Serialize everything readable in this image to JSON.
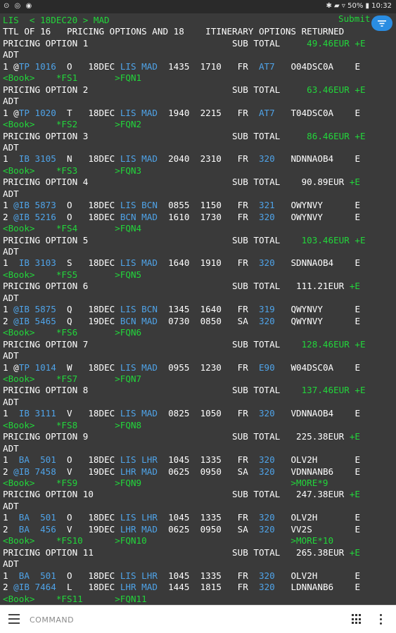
{
  "statusbar": {
    "left_icons": "⊙ ◎ ◉",
    "right": "✱ ▰ ▿ 50% ▮ 10:32"
  },
  "terminal": {
    "submit_label": "Submit",
    "lines": [
      [
        [
          "LIS  < 18DEC20 > MAD",
          "green"
        ]
      ],
      [
        [
          "TTL OF 16   PRICING OPTIONS AND 18    ITINERARY OPTIONS RETURNED",
          "white"
        ]
      ],
      [
        [
          "PRICING OPTION 1                           SUB TOTAL   ",
          "white"
        ],
        [
          "  49.46EUR +E",
          "green"
        ]
      ],
      [
        [
          "ADT",
          "white"
        ]
      ],
      [
        [
          "1 @",
          "white"
        ],
        [
          "TP 1016",
          "blue"
        ],
        [
          "  O   18DEC ",
          "white"
        ],
        [
          "LIS MAD",
          "blue"
        ],
        [
          "  1435  1710   FR  ",
          "white"
        ],
        [
          "AT7",
          "blue"
        ],
        [
          "   O04DSC0A    E",
          "white"
        ]
      ],
      [
        [
          "<Book>    *FS1       >FQN1",
          "green"
        ]
      ],
      [
        [
          "PRICING OPTION 2                           SUB TOTAL   ",
          "white"
        ],
        [
          "  63.46EUR +E",
          "green"
        ]
      ],
      [
        [
          "ADT",
          "white"
        ]
      ],
      [
        [
          "1 @",
          "white"
        ],
        [
          "TP 1020",
          "blue"
        ],
        [
          "  T   18DEC ",
          "white"
        ],
        [
          "LIS MAD",
          "blue"
        ],
        [
          "  1940  2215   FR  ",
          "white"
        ],
        [
          "AT7",
          "blue"
        ],
        [
          "   T04DSC0A    E",
          "white"
        ]
      ],
      [
        [
          "<Book>    *FS2       >FQN2",
          "green"
        ]
      ],
      [
        [
          "PRICING OPTION 3                           SUB TOTAL   ",
          "white"
        ],
        [
          "  86.46EUR +E",
          "green"
        ]
      ],
      [
        [
          "ADT",
          "white"
        ]
      ],
      [
        [
          "1  ",
          "white"
        ],
        [
          "IB 3105",
          "blue"
        ],
        [
          "  N   18DEC ",
          "white"
        ],
        [
          "LIS MAD",
          "blue"
        ],
        [
          "  2040  2310   FR  ",
          "white"
        ],
        [
          "320",
          "blue"
        ],
        [
          "   NDNNAOB4    E",
          "white"
        ]
      ],
      [
        [
          "<Book>    *FS3       >FQN3",
          "green"
        ]
      ],
      [
        [
          "PRICING OPTION 4                           SUB TOTAL    90.89EUR ",
          "white"
        ],
        [
          "+E",
          "green"
        ]
      ],
      [
        [
          "ADT",
          "white"
        ]
      ],
      [
        [
          "1 ",
          "white"
        ],
        [
          "@IB 5873",
          "blue"
        ],
        [
          "  O   18DEC ",
          "white"
        ],
        [
          "LIS BCN",
          "blue"
        ],
        [
          "  0855  1150   FR  ",
          "white"
        ],
        [
          "321",
          "blue"
        ],
        [
          "   OWYNVY      E",
          "white"
        ]
      ],
      [
        [
          "2 ",
          "white"
        ],
        [
          "@IB 5216",
          "blue"
        ],
        [
          "  O   18DEC ",
          "white"
        ],
        [
          "BCN MAD",
          "blue"
        ],
        [
          "  1610  1730   FR  ",
          "white"
        ],
        [
          "320",
          "blue"
        ],
        [
          "   OWYNVY      E",
          "white"
        ]
      ],
      [
        [
          "<Book>    *FS4       >FQN4",
          "green"
        ]
      ],
      [
        [
          "PRICING OPTION 5                           SUB TOTAL   ",
          "white"
        ],
        [
          " 103.46EUR +E",
          "green"
        ]
      ],
      [
        [
          "ADT",
          "white"
        ]
      ],
      [
        [
          "1  ",
          "white"
        ],
        [
          "IB 3103",
          "blue"
        ],
        [
          "  S   18DEC ",
          "white"
        ],
        [
          "LIS MAD",
          "blue"
        ],
        [
          "  1640  1910   FR  ",
          "white"
        ],
        [
          "320",
          "blue"
        ],
        [
          "   SDNNAOB4    E",
          "white"
        ]
      ],
      [
        [
          "<Book>    *FS5       >FQN5",
          "green"
        ]
      ],
      [
        [
          "PRICING OPTION 6                           SUB TOTAL   111.21EUR ",
          "white"
        ],
        [
          "+E",
          "green"
        ]
      ],
      [
        [
          "ADT",
          "white"
        ]
      ],
      [
        [
          "1 ",
          "white"
        ],
        [
          "@IB 5875",
          "blue"
        ],
        [
          "  Q   18DEC ",
          "white"
        ],
        [
          "LIS BCN",
          "blue"
        ],
        [
          "  1345  1640   FR  ",
          "white"
        ],
        [
          "319",
          "blue"
        ],
        [
          "   QWYNVY      E",
          "white"
        ]
      ],
      [
        [
          "2 ",
          "white"
        ],
        [
          "@IB 5465",
          "blue"
        ],
        [
          "  Q   19DEC ",
          "white"
        ],
        [
          "BCN MAD",
          "blue"
        ],
        [
          "  0730  0850   SA  ",
          "white"
        ],
        [
          "320",
          "blue"
        ],
        [
          "   QWYNVY      E",
          "white"
        ]
      ],
      [
        [
          "<Book>    *FS6       >FQN6",
          "green"
        ]
      ],
      [
        [
          "PRICING OPTION 7                           SUB TOTAL   ",
          "white"
        ],
        [
          " 128.46EUR +E",
          "green"
        ]
      ],
      [
        [
          "ADT",
          "white"
        ]
      ],
      [
        [
          "1 @",
          "white"
        ],
        [
          "TP 1014",
          "blue"
        ],
        [
          "  W   18DEC ",
          "white"
        ],
        [
          "LIS MAD",
          "blue"
        ],
        [
          "  0955  1230   FR  ",
          "white"
        ],
        [
          "E90",
          "blue"
        ],
        [
          "   W04DSC0A    E",
          "white"
        ]
      ],
      [
        [
          "<Book>    *FS7       >FQN7",
          "green"
        ]
      ],
      [
        [
          "PRICING OPTION 8                           SUB TOTAL   ",
          "white"
        ],
        [
          " 137.46EUR +E",
          "green"
        ]
      ],
      [
        [
          "ADT",
          "white"
        ]
      ],
      [
        [
          "1  ",
          "white"
        ],
        [
          "IB 3111",
          "blue"
        ],
        [
          "  V   18DEC ",
          "white"
        ],
        [
          "LIS MAD",
          "blue"
        ],
        [
          "  0825  1050   FR  ",
          "white"
        ],
        [
          "320",
          "blue"
        ],
        [
          "   VDNNAOB4    E",
          "white"
        ]
      ],
      [
        [
          "<Book>    *FS8       >FQN8",
          "green"
        ]
      ],
      [
        [
          "PRICING OPTION 9                           SUB TOTAL   225.38EUR ",
          "white"
        ],
        [
          "+E",
          "green"
        ]
      ],
      [
        [
          "ADT",
          "white"
        ]
      ],
      [
        [
          "1  ",
          "white"
        ],
        [
          "BA  501",
          "blue"
        ],
        [
          "  O   18DEC ",
          "white"
        ],
        [
          "LIS LHR",
          "blue"
        ],
        [
          "  1045  1335   FR  ",
          "white"
        ],
        [
          "320",
          "blue"
        ],
        [
          "   OLV2H       E",
          "white"
        ]
      ],
      [
        [
          "2 ",
          "white"
        ],
        [
          "@IB 7458",
          "blue"
        ],
        [
          "  V   19DEC ",
          "white"
        ],
        [
          "LHR MAD",
          "blue"
        ],
        [
          "  0625  0950   SA  ",
          "white"
        ],
        [
          "320",
          "blue"
        ],
        [
          "   VDNNANB6    E",
          "white"
        ]
      ],
      [
        [
          "<Book>    *FS9       >FQN9                            >MORE*9",
          "green"
        ]
      ],
      [
        [
          "PRICING OPTION 10                          SUB TOTAL   247.38EUR ",
          "white"
        ],
        [
          "+E",
          "green"
        ]
      ],
      [
        [
          "ADT",
          "white"
        ]
      ],
      [
        [
          "1  ",
          "white"
        ],
        [
          "BA  501",
          "blue"
        ],
        [
          "  O   18DEC ",
          "white"
        ],
        [
          "LIS LHR",
          "blue"
        ],
        [
          "  1045  1335   FR  ",
          "white"
        ],
        [
          "320",
          "blue"
        ],
        [
          "   OLV2H       E",
          "white"
        ]
      ],
      [
        [
          "2  ",
          "white"
        ],
        [
          "BA  456",
          "blue"
        ],
        [
          "  V   19DEC ",
          "white"
        ],
        [
          "LHR MAD",
          "blue"
        ],
        [
          "  0625  0950   SA  ",
          "white"
        ],
        [
          "320",
          "blue"
        ],
        [
          "   VV2S        E",
          "white"
        ]
      ],
      [
        [
          "<Book>    *FS10      >FQN10                           >MORE*10",
          "green"
        ]
      ],
      [
        [
          "PRICING OPTION 11                          SUB TOTAL   265.38EUR ",
          "white"
        ],
        [
          "+E",
          "green"
        ]
      ],
      [
        [
          "ADT",
          "white"
        ]
      ],
      [
        [
          "1  ",
          "white"
        ],
        [
          "BA  501",
          "blue"
        ],
        [
          "  O   18DEC ",
          "white"
        ],
        [
          "LIS LHR",
          "blue"
        ],
        [
          "  1045  1335   FR  ",
          "white"
        ],
        [
          "320",
          "blue"
        ],
        [
          "   OLV2H       E",
          "white"
        ]
      ],
      [
        [
          "2 ",
          "white"
        ],
        [
          "@IB 7464",
          "blue"
        ],
        [
          "  L   18DEC ",
          "white"
        ],
        [
          "LHR MAD",
          "blue"
        ],
        [
          "  1445  1815   FR  ",
          "white"
        ],
        [
          "320",
          "blue"
        ],
        [
          "   LDNNANB6    E",
          "white"
        ]
      ],
      [
        [
          "<Book>    *FS11      >FQN11",
          "green"
        ]
      ]
    ]
  },
  "command_bar": {
    "placeholder": "COMMAND",
    "menu_icon": "menu-icon",
    "keypad_icon": "keypad-icon",
    "more_icon": "more-vert-icon"
  },
  "colors": {
    "background": "#3a3a3a",
    "text_white": "#ffffff",
    "text_green": "#22d63a",
    "text_blue": "#4fa3e8",
    "fab": "#2a8de2"
  }
}
